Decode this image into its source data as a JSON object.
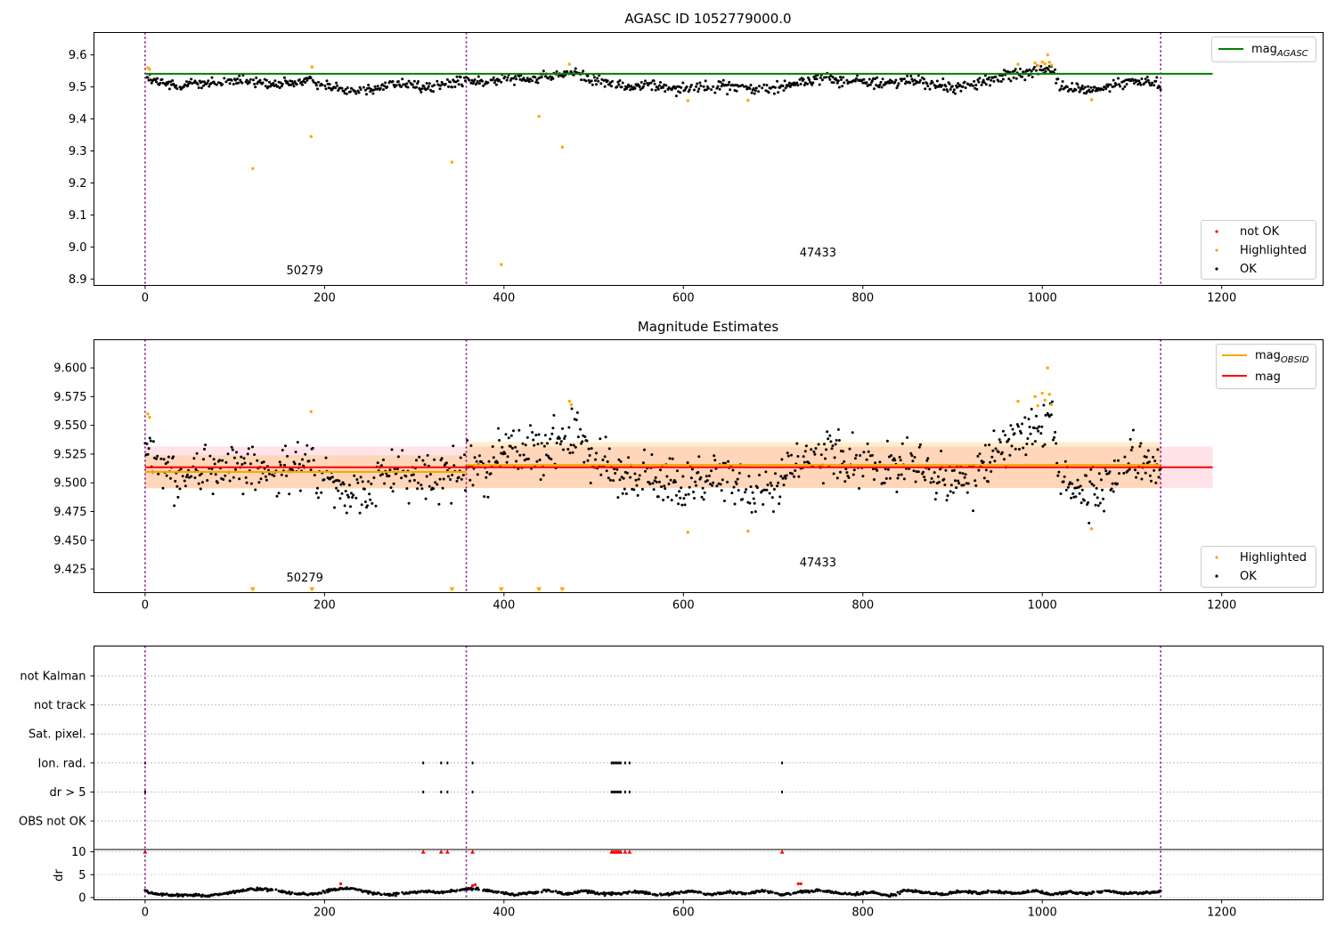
{
  "chart_data": [
    {
      "type": "scatter",
      "title": "AGASC ID 1052779000.0",
      "xlim": [
        -57,
        1313
      ],
      "ylim": [
        8.88,
        9.67
      ],
      "xticks": [
        0,
        200,
        400,
        600,
        800,
        1000,
        1200
      ],
      "yticks": [
        8.9,
        9.0,
        9.1,
        9.2,
        9.3,
        9.4,
        9.5,
        9.6
      ],
      "ytick_labels": [
        "8.9",
        "9.0",
        "9.1",
        "9.2",
        "9.3",
        "9.4",
        "9.5",
        "9.6"
      ],
      "obs_boundaries": [
        0,
        358,
        1132
      ],
      "annotations": [
        {
          "text": "50279",
          "x": 178,
          "y": 8.915
        },
        {
          "text": "47433",
          "x": 750,
          "y": 8.97
        }
      ],
      "mag_agasc": {
        "value": 9.541,
        "x_range": [
          0,
          1190
        ],
        "color": "#008000"
      },
      "ok_trend": {
        "x": [
          0,
          20,
          40,
          60,
          80,
          100,
          120,
          140,
          160,
          180,
          200,
          220,
          240,
          260,
          280,
          300,
          320,
          340,
          358,
          380,
          400,
          420,
          440,
          460,
          480,
          500,
          520,
          540,
          560,
          580,
          600,
          620,
          640,
          660,
          680,
          700,
          720,
          740,
          760,
          780,
          800,
          820,
          840,
          860,
          880,
          900,
          920,
          940,
          960,
          980,
          1000,
          1010,
          1020,
          1040,
          1060,
          1080,
          1100,
          1120,
          1132
        ],
        "y": [
          9.53,
          9.51,
          9.505,
          9.515,
          9.51,
          9.52,
          9.515,
          9.505,
          9.51,
          9.52,
          9.505,
          9.495,
          9.49,
          9.5,
          9.51,
          9.505,
          9.5,
          9.51,
          9.52,
          9.51,
          9.53,
          9.53,
          9.525,
          9.535,
          9.545,
          9.52,
          9.51,
          9.5,
          9.505,
          9.5,
          9.495,
          9.5,
          9.505,
          9.5,
          9.49,
          9.495,
          9.51,
          9.52,
          9.53,
          9.515,
          9.52,
          9.51,
          9.515,
          9.52,
          9.505,
          9.5,
          9.505,
          9.52,
          9.535,
          9.545,
          9.55,
          9.56,
          9.5,
          9.495,
          9.49,
          9.505,
          9.52,
          9.515,
          9.51
        ]
      },
      "ok_noise": 0.012,
      "highlighted_points": {
        "x": [
          3,
          5,
          120,
          185,
          186,
          342,
          397,
          439,
          465,
          473,
          605,
          672,
          973,
          992,
          995,
          1000,
          1003,
          1006,
          1008,
          1010,
          1055
        ],
        "y": [
          9.56,
          9.555,
          9.245,
          9.345,
          9.562,
          9.265,
          8.945,
          9.408,
          9.312,
          9.571,
          9.457,
          9.458,
          9.571,
          9.575,
          9.567,
          9.578,
          9.572,
          9.6,
          9.577,
          9.568,
          9.46
        ],
        "color": "#FFA500"
      },
      "legend_upper": [
        {
          "label": "mag",
          "subscript": "AGASC",
          "color": "#008000"
        }
      ],
      "legend_lower": [
        {
          "label": "not OK",
          "color": "#FF0000"
        },
        {
          "label": "Highlighted",
          "color": "#FFA500"
        },
        {
          "label": "OK",
          "color": "#000000"
        }
      ]
    },
    {
      "type": "scatter",
      "title": "Magnitude Estimates",
      "xlim": [
        -57,
        1313
      ],
      "ylim": [
        9.4045,
        9.6245
      ],
      "xticks": [
        0,
        200,
        400,
        600,
        800,
        1000,
        1200
      ],
      "yticks": [
        9.425,
        9.45,
        9.475,
        9.5,
        9.525,
        9.55,
        9.575,
        9.6
      ],
      "ytick_labels": [
        "9.425",
        "9.450",
        "9.475",
        "9.500",
        "9.525",
        "9.550",
        "9.575",
        "9.600"
      ],
      "obs_boundaries": [
        0,
        358,
        1132
      ],
      "annotations": [
        {
          "text": "50279",
          "x": 178,
          "y": 9.414
        },
        {
          "text": "47433",
          "x": 750,
          "y": 9.4275
        }
      ],
      "mag": {
        "value": 9.5135,
        "band": [
          9.4955,
          9.5315
        ],
        "x_range": [
          0,
          1190
        ],
        "color": "#FF0000",
        "band_color": "#FFC0CB"
      },
      "mag_obsid": [
        {
          "x_range": [
            0,
            358
          ],
          "value": 9.5095,
          "band": [
            9.495,
            9.524
          ]
        },
        {
          "x_range": [
            358,
            1132
          ],
          "value": 9.5155,
          "band": [
            9.4955,
            9.5355
          ]
        }
      ],
      "mag_obsid_color": "#FFA500",
      "ok_trend_ref": 0,
      "highlighted_points": {
        "x": [
          3,
          5,
          185,
          473,
          475,
          605,
          672,
          973,
          992,
          995,
          1000,
          1003,
          1006,
          1008,
          1010,
          1055
        ],
        "y": [
          9.56,
          9.557,
          9.562,
          9.571,
          9.568,
          9.457,
          9.458,
          9.571,
          9.575,
          9.567,
          9.578,
          9.572,
          9.6,
          9.577,
          9.568,
          9.46
        ],
        "color": "#FFA500"
      },
      "offscale_points": {
        "x": [
          120,
          186,
          342,
          397,
          439,
          465
        ],
        "marker": "down-triangle",
        "color": "#FFA500"
      },
      "legend_upper": [
        {
          "label": "mag",
          "subscript": "OBSID",
          "color": "#FFA500"
        },
        {
          "label": "mag",
          "subscript": "",
          "color": "#FF0000"
        }
      ],
      "legend_lower": [
        {
          "label": "Highlighted",
          "color": "#FFA500"
        },
        {
          "label": "OK",
          "color": "#000000"
        }
      ]
    },
    {
      "type": "scatter",
      "title": "",
      "xlim": [
        -57,
        1313
      ],
      "xticks": [
        0,
        200,
        400,
        600,
        800,
        1000,
        1200
      ],
      "obs_boundaries": [
        0,
        358,
        1132
      ],
      "flag_rows": [
        "not Kalman",
        "not track",
        "Sat. pixel.",
        "Ion. rad.",
        "dr > 5",
        "OBS not OK"
      ],
      "flag_points": {
        "Ion. rad.": [
          0,
          310,
          330,
          337,
          365,
          520,
          522,
          524,
          526,
          528,
          530,
          535,
          540,
          710
        ],
        "dr > 5": [
          0,
          310,
          330,
          337,
          365,
          520,
          522,
          524,
          526,
          528,
          530,
          535,
          540,
          710
        ]
      },
      "dr": {
        "ylabel": "dr",
        "ylim": [
          -0.5,
          10.5
        ],
        "yticks": [
          0,
          5,
          10
        ],
        "ytick_labels": [
          "0",
          "5",
          "10"
        ],
        "clipped_x": [
          0,
          310,
          330,
          337,
          365,
          520,
          522,
          524,
          526,
          528,
          530,
          535,
          540,
          710
        ],
        "clipped_value": 10,
        "not_ok_color": "#FF0000",
        "red_points": {
          "x": [
            218,
            365,
            368,
            728,
            731
          ],
          "y": [
            3.0,
            2.6,
            2.8,
            3.0,
            3.0
          ]
        },
        "trend": {
          "x": [
            0,
            10,
            30,
            50,
            70,
            90,
            110,
            130,
            150,
            170,
            190,
            210,
            230,
            250,
            270,
            290,
            310,
            330,
            350,
            370,
            390,
            410,
            430,
            450,
            470,
            490,
            510,
            530,
            550,
            570,
            590,
            610,
            630,
            650,
            670,
            690,
            710,
            730,
            750,
            770,
            790,
            810,
            830,
            850,
            870,
            890,
            910,
            930,
            950,
            970,
            990,
            1010,
            1030,
            1050,
            1070,
            1090,
            1110,
            1132
          ],
          "y": [
            1.5,
            0.8,
            0.5,
            0.6,
            0.4,
            0.9,
            1.6,
            1.9,
            1.4,
            0.8,
            0.7,
            1.8,
            2.0,
            1.1,
            0.6,
            0.9,
            1.3,
            1.1,
            1.7,
            2.0,
            1.2,
            0.6,
            1.0,
            1.6,
            0.7,
            1.5,
            0.8,
            0.9,
            1.3,
            0.5,
            1.0,
            1.4,
            0.6,
            1.3,
            0.9,
            1.5,
            0.6,
            1.2,
            1.6,
            1.0,
            0.7,
            1.2,
            0.4,
            1.6,
            1.1,
            0.7,
            1.4,
            1.0,
            1.3,
            0.9,
            1.5,
            0.7,
            1.2,
            0.8,
            1.5,
            0.9,
            1.0,
            1.2
          ]
        }
      }
    }
  ]
}
